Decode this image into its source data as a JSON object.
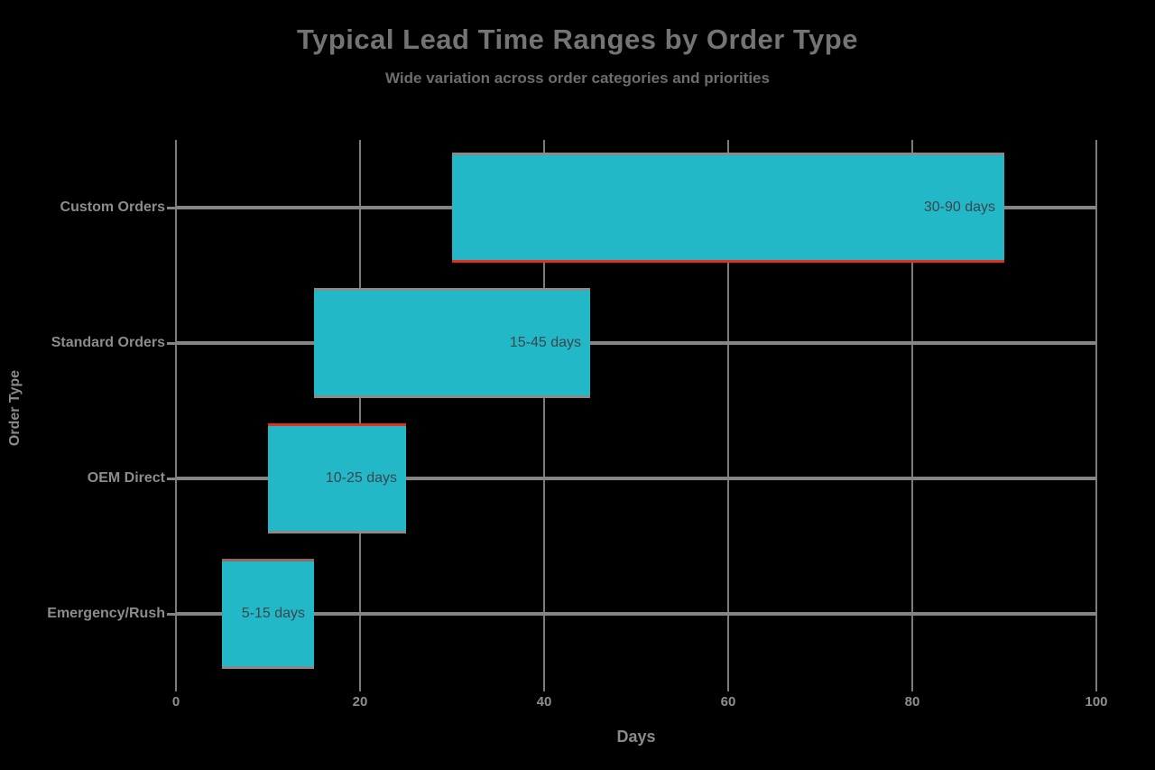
{
  "page": {
    "background": "#000000"
  },
  "chart_data": {
    "type": "bar",
    "orientation": "horizontal",
    "title": "Typical Lead Time Ranges by Order Type",
    "subtitle": "Wide variation across order categories and priorities",
    "xlabel": "Days",
    "ylabel": "Order Type",
    "xlim": [
      0,
      100
    ],
    "xticks": [
      "0",
      "20",
      "40",
      "60",
      "80",
      "100"
    ],
    "xtick_values": [
      0,
      20,
      40,
      60,
      80,
      100
    ],
    "grid": true,
    "legend": false,
    "categories": [
      "Custom Orders",
      "Standard Orders",
      "OEM Direct",
      "Emergency/Rush"
    ],
    "bars": [
      {
        "category": "Custom Orders",
        "start": 30,
        "end": 90,
        "label": "30-90 days",
        "edge_top": "gray",
        "edge_bottom": "red"
      },
      {
        "category": "Standard Orders",
        "start": 15,
        "end": 45,
        "label": "15-45 days",
        "edge_top": "gray",
        "edge_bottom": "gray"
      },
      {
        "category": "OEM Direct",
        "start": 10,
        "end": 25,
        "label": "10-25 days",
        "edge_top": "red",
        "edge_bottom": "gray"
      },
      {
        "category": "Emergency/Rush",
        "start": 5,
        "end": 15,
        "label": "5-15 days",
        "edge_top": "muted",
        "edge_bottom": "gray"
      }
    ],
    "colors": {
      "bar_fill": "#22b8c8",
      "bar_edge_red": "#e23020",
      "bar_edge_gray": "#8a8a8a",
      "bar_edge_muted": "#96695f",
      "grid_line": "#7b7b7b",
      "row_line": "#858585",
      "tick_text": "#8e8e8e",
      "title_text": "#747474",
      "subtitle_text": "#6d6d6d",
      "bar_label_text": "#3a474b"
    }
  }
}
